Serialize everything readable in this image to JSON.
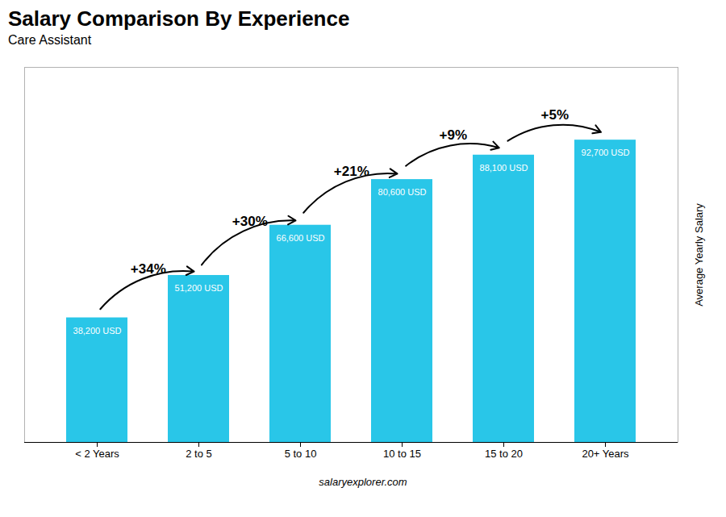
{
  "chart_data": {
    "type": "bar",
    "title": "Salary Comparison By Experience",
    "subtitle": "Care Assistant",
    "ylabel": "Average Yearly Salary",
    "caption": "salaryexplorer.com",
    "categories": [
      "< 2 Years",
      "2 to 5",
      "5 to 10",
      "10 to 15",
      "15 to 20",
      "20+ Years"
    ],
    "values": [
      38200,
      51200,
      66600,
      80600,
      88100,
      92700
    ],
    "value_labels": [
      "38,200 USD",
      "51,200 USD",
      "66,600 USD",
      "80,600 USD",
      "88,100 USD",
      "92,700 USD"
    ],
    "data_labels": true,
    "annotations": [
      "+34%",
      "+30%",
      "+21%",
      "+9%",
      "+5%"
    ],
    "color": "#29c6e8",
    "ylim": [
      0,
      115000
    ],
    "tick_labels": "x",
    "grid": false
  }
}
